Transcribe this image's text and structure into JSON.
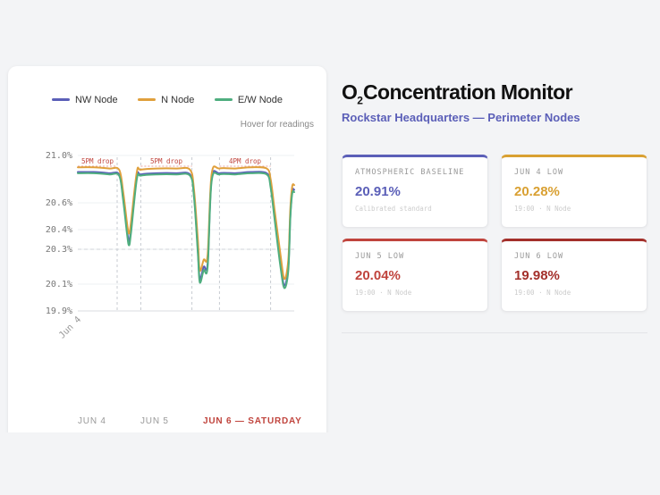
{
  "header": {
    "title_main": "O",
    "title_sub": "2",
    "title_rest": "Concentration Monitor",
    "subtitle": "Rockstar Headquarters — Perimeter Nodes"
  },
  "chart": {
    "hover_hint": "Hover for readings",
    "day_labels": [
      "JUN 4",
      "JUN 5",
      "JUN 6 — SATURDAY"
    ],
    "active_day": 2
  },
  "colors": {
    "nw": "#5b5fb8",
    "n": "#e0a03c",
    "ew": "#4fae7f",
    "accent_red": "#c0443d",
    "dark_red": "#a3302b"
  },
  "stats": [
    {
      "label": "ATMOSPHERIC BASELINE",
      "value": "20.91%",
      "sub": "Calibrated standard",
      "color": "#5b5fb8"
    },
    {
      "label": "JUN 4 LOW",
      "value": "20.28%",
      "sub": "19:00 · N Node",
      "color": "#d9a032"
    },
    {
      "label": "JUN 5 LOW",
      "value": "20.04%",
      "sub": "19:00 · N Node",
      "color": "#c0443d"
    },
    {
      "label": "JUN 6 LOW",
      "value": "19.98%",
      "sub": "19:00 · N Node",
      "color": "#a3302b"
    }
  ],
  "chart_data": {
    "type": "line",
    "title": "",
    "xlabel": "",
    "ylabel": "",
    "x_tick_labels": [
      "Jun 4"
    ],
    "y_ticks": [
      "21.0%",
      "20.6%",
      "20.4%",
      "20.3%",
      "20.1%",
      "19.9%"
    ],
    "ylim": [
      19.9,
      21.0
    ],
    "grid": true,
    "legend_position": "top",
    "baseline_reference": 20.3,
    "annotations": [
      {
        "text": "5PM drop",
        "start": 0.0,
        "end": 1.0
      },
      {
        "text": "5PM drop",
        "start": 1.6,
        "end": 2.9
      },
      {
        "text": "4PM drop",
        "start": 3.6,
        "end": 4.9
      }
    ],
    "day_dividers": [
      1.0,
      1.6,
      2.9,
      3.6,
      4.9
    ],
    "x": [
      0.0,
      0.4,
      0.8,
      1.05,
      1.15,
      1.25,
      1.3,
      1.35,
      1.5,
      1.6,
      2.0,
      2.5,
      2.85,
      2.95,
      3.05,
      3.1,
      3.2,
      3.3,
      3.4,
      3.6,
      4.0,
      4.4,
      4.8,
      4.9,
      5.0,
      5.15,
      5.25,
      5.35,
      5.4,
      5.45,
      5.5
    ],
    "series": [
      {
        "name": "NW Node",
        "color": "#5b5fb8",
        "values": [
          20.86,
          20.86,
          20.85,
          20.84,
          20.65,
          20.4,
          20.34,
          20.4,
          20.82,
          20.84,
          20.85,
          20.85,
          20.84,
          20.68,
          20.3,
          20.13,
          20.2,
          20.22,
          20.8,
          20.85,
          20.85,
          20.86,
          20.85,
          20.75,
          20.5,
          20.22,
          20.09,
          20.2,
          20.5,
          20.7,
          20.71
        ]
      },
      {
        "name": "N Node",
        "color": "#e0a03c",
        "values": [
          20.9,
          20.9,
          20.89,
          20.88,
          20.7,
          20.45,
          20.38,
          20.45,
          20.86,
          20.88,
          20.89,
          20.89,
          20.88,
          20.72,
          20.35,
          20.18,
          20.24,
          20.27,
          20.84,
          20.89,
          20.89,
          20.9,
          20.89,
          20.8,
          20.55,
          20.27,
          20.13,
          20.24,
          20.55,
          20.74,
          20.75
        ]
      },
      {
        "name": "E/W Node",
        "color": "#4fae7f",
        "values": [
          20.85,
          20.85,
          20.84,
          20.83,
          20.63,
          20.38,
          20.32,
          20.38,
          20.8,
          20.83,
          20.84,
          20.84,
          20.83,
          20.66,
          20.28,
          20.11,
          20.18,
          20.2,
          20.78,
          20.84,
          20.84,
          20.85,
          20.84,
          20.73,
          20.48,
          20.2,
          20.07,
          20.18,
          20.48,
          20.68,
          20.69
        ]
      }
    ]
  }
}
